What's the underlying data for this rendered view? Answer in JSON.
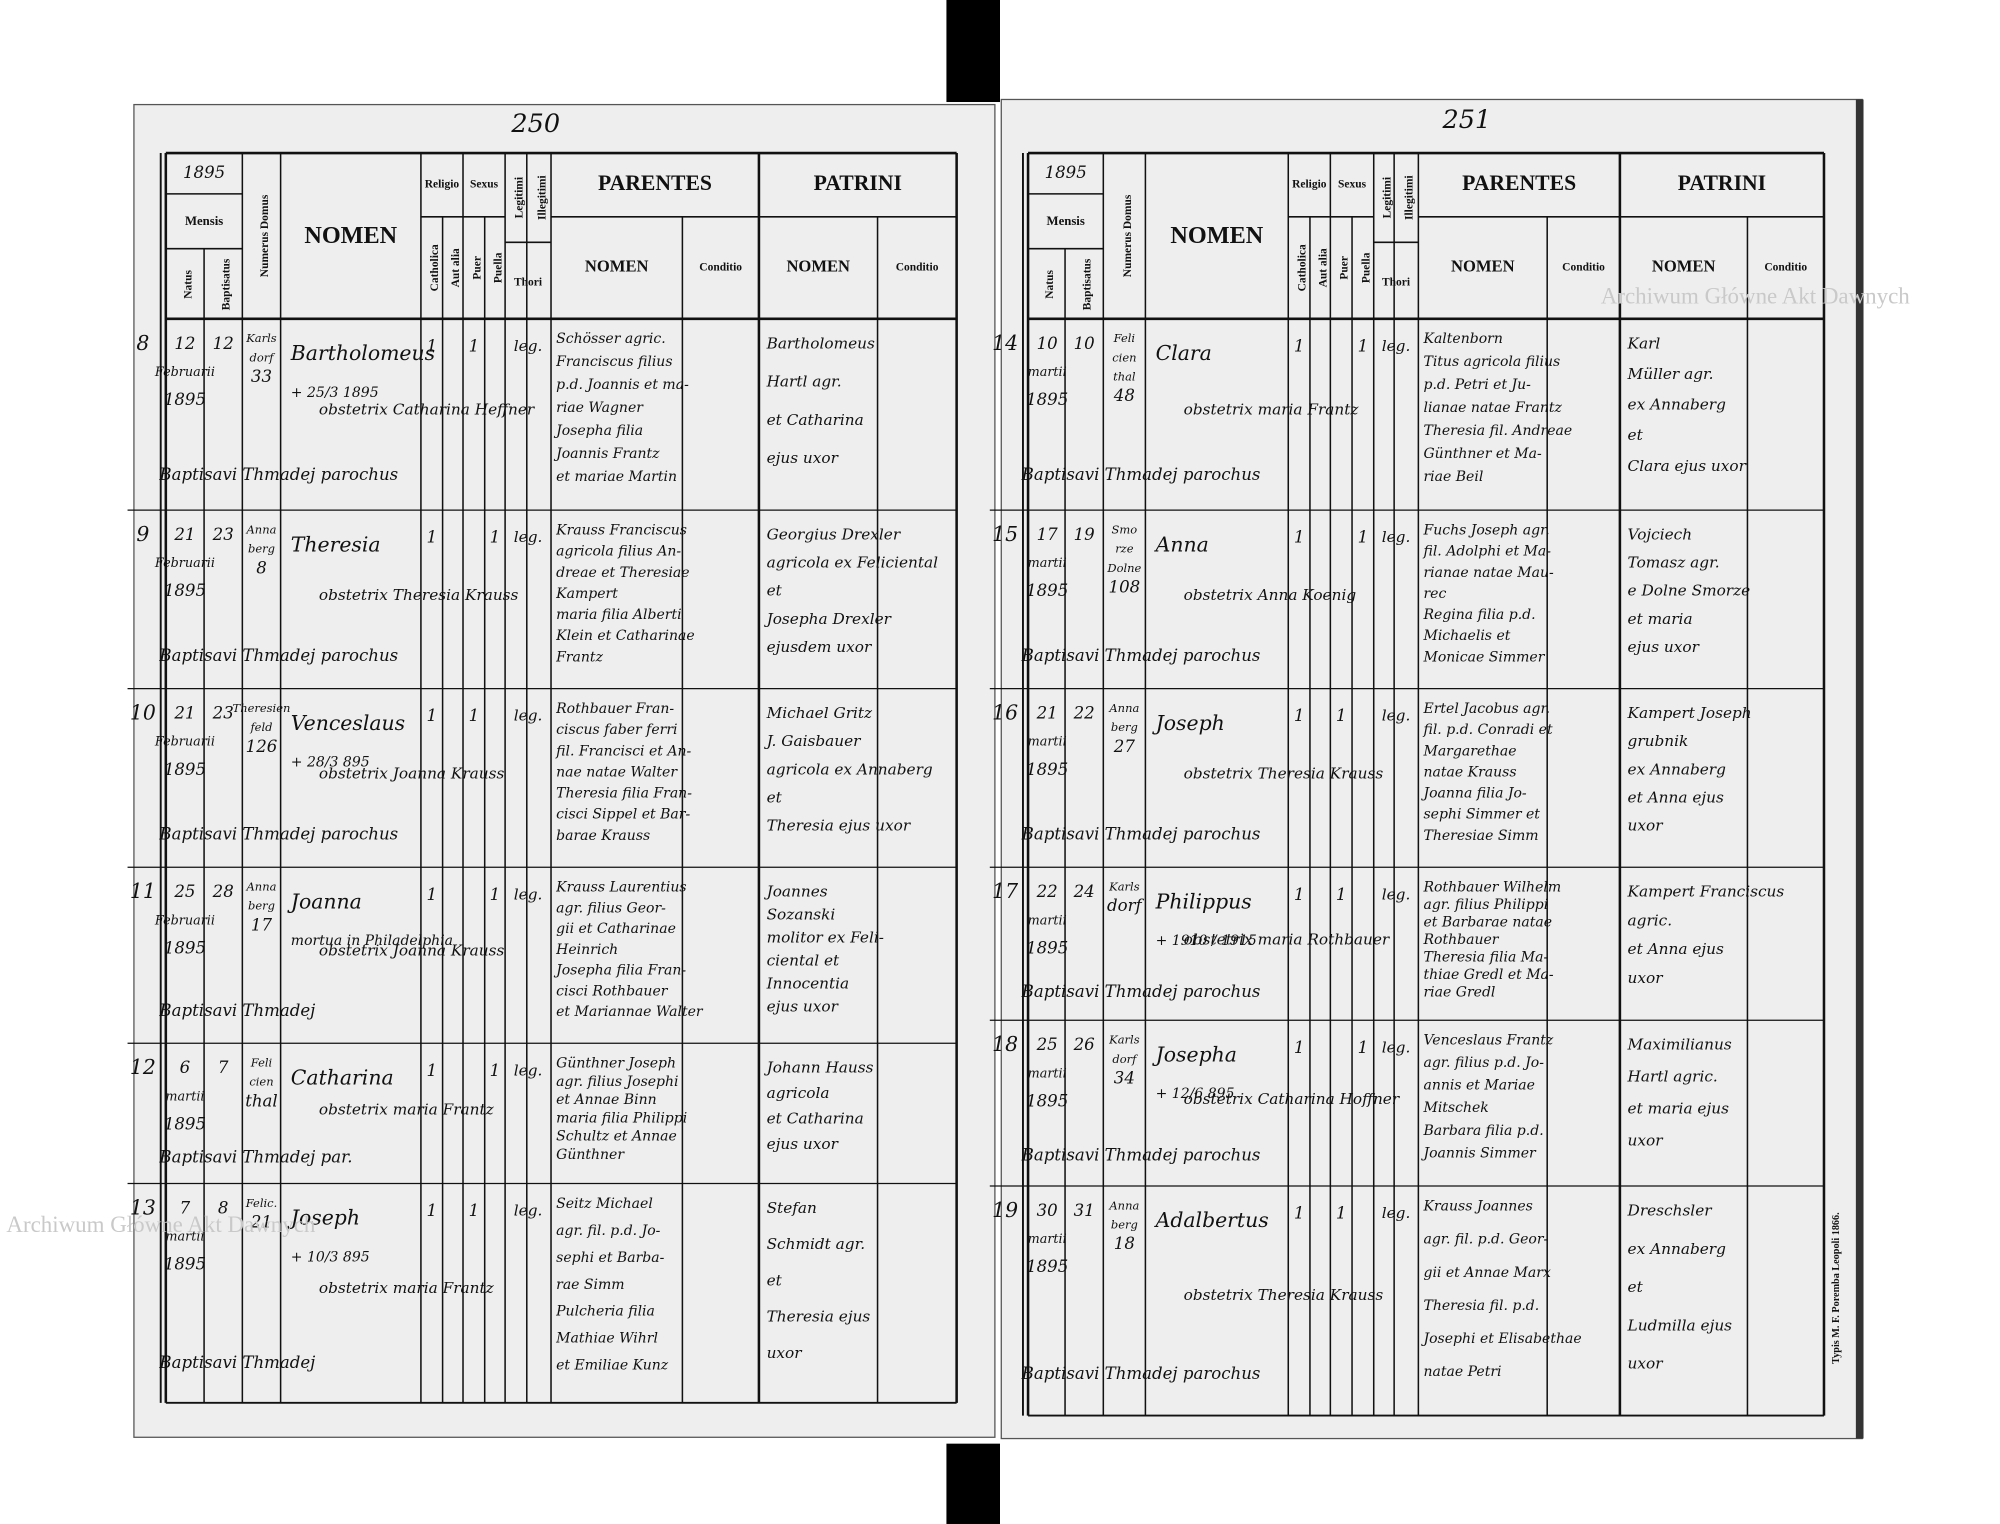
{
  "watermark": "Archiwum Główne Akt Dawnych",
  "header": {
    "mensis": "Mensis",
    "natus": "Natus",
    "baptisatus": "Baptisatus",
    "numerus_domus": "Numerus Domus",
    "nomen": "NOMEN",
    "religio": "Religio",
    "catholica": "Catholica",
    "aut_alia": "Aut alia",
    "sexus": "Sexus",
    "puer": "Puer",
    "puella": "Puella",
    "legitimi": "Legitimi",
    "illegitimi": "Illegitimi",
    "thori": "Thori",
    "parentes": "PARENTES",
    "patrini": "PATRINI",
    "parentes_nomen": "NOMEN",
    "parentes_conditio": "Conditio",
    "patrini_nomen": "NOMEN",
    "patrini_conditio": "Conditio"
  },
  "footer_print": "Typis M. F. Poremba Leopoli 1866.",
  "pages": [
    {
      "page_number": "250",
      "year": "1895",
      "rows": [
        {
          "no": "8",
          "natus": [
            "12",
            "Februarii",
            "1895"
          ],
          "baptisatus": "12",
          "domus": [
            "Karls",
            "dorf",
            "33"
          ],
          "nomen": "Bartholomeus",
          "note": "+ 25/3 1895",
          "catholica": "1",
          "puer": "1",
          "thori": "leg.",
          "obstetrix": "obstetrix Catharina Heffner",
          "baptisavit": "Baptisavi Thmadej parochus",
          "parentes": [
            "Schösser agric.",
            "Franciscus filius",
            "p.d. Joannis et ma-",
            "riae Wagner",
            "Josepha filia",
            "Joannis Frantz",
            "et mariae Martin"
          ],
          "patrini": [
            "Bartholomeus",
            "Hartl agr.",
            "et Catharina",
            "ejus uxor"
          ]
        },
        {
          "no": "9",
          "natus": [
            "21",
            "Februarii",
            "1895"
          ],
          "baptisatus": "23",
          "domus": [
            "Anna",
            "berg",
            "8"
          ],
          "nomen": "Theresia",
          "catholica": "1",
          "puella": "1",
          "thori": "leg.",
          "obstetrix": "obstetrix Theresia Krauss",
          "baptisavit": "Baptisavi Thmadej parochus",
          "parentes": [
            "Krauss Franciscus",
            "agricola filius An-",
            "dreae et Theresiae",
            "Kampert",
            "maria filia Alberti",
            "Klein et Catharinae",
            "Frantz"
          ],
          "patrini": [
            "Georgius Drexler",
            "agricola ex Feliciental",
            "et",
            "Josepha Drexler",
            "ejusdem uxor"
          ]
        },
        {
          "no": "10",
          "natus": [
            "21",
            "Februarii",
            "1895"
          ],
          "baptisatus": "23",
          "domus": [
            "Theresien",
            "feld",
            "126"
          ],
          "nomen": "Venceslaus",
          "note": "+ 28/3 895",
          "catholica": "1",
          "puer": "1",
          "thori": "leg.",
          "obstetrix": "obstetrix Joanna Krauss",
          "baptisavit": "Baptisavi Thmadej parochus",
          "parentes": [
            "Rothbauer Fran-",
            "ciscus faber ferri",
            "fil. Francisci et An-",
            "nae natae Walter",
            "Theresia filia Fran-",
            "cisci Sippel et Bar-",
            "barae Krauss"
          ],
          "patrini": [
            "Michael Gritz",
            "J. Gaisbauer",
            "agricola ex Annaberg",
            "et",
            "Theresia ejus uxor"
          ]
        },
        {
          "no": "11",
          "natus": [
            "25",
            "Februarii",
            "1895"
          ],
          "baptisatus": "28",
          "domus": [
            "Anna",
            "berg",
            "17"
          ],
          "nomen": "Joanna",
          "note": "mortua in Philadelphia",
          "catholica": "1",
          "puella": "1",
          "thori": "leg.",
          "obstetrix": "obstetrix Joanna Krauss",
          "baptisavit": "Baptisavi Thmadej",
          "parentes": [
            "Krauss Laurentius",
            "agr. filius Geor-",
            "gii et Catharinae",
            "Heinrich",
            "Josepha filia Fran-",
            "cisci Rothbauer",
            "et Mariannae Walter"
          ],
          "patrini": [
            "Joannes",
            "Sozanski",
            "molitor ex Feli-",
            "ciental et",
            "Innocentia",
            "ejus uxor"
          ]
        },
        {
          "no": "12",
          "natus": [
            "6",
            "martii",
            "1895"
          ],
          "baptisatus": "7",
          "domus": [
            "Feli",
            "cien",
            "thal"
          ],
          "nomen": "Catharina",
          "catholica": "1",
          "puella": "1",
          "thori": "leg.",
          "obstetrix": "obstetrix maria Frantz",
          "baptisavit": "Baptisavi Thmadej par.",
          "parentes": [
            "Günthner Joseph",
            "agr. filius Josephi",
            "et Annae Binn",
            "maria filia Philippi",
            "Schultz et Annae",
            "Günthner"
          ],
          "patrini": [
            "Johann Hauss",
            "agricola",
            "et Catharina",
            "ejus uxor"
          ]
        },
        {
          "no": "13",
          "natus": [
            "7",
            "martii",
            "1895"
          ],
          "baptisatus": "8",
          "domus": [
            "Felic.",
            "21"
          ],
          "nomen": "Joseph",
          "note": "+ 10/3 895",
          "catholica": "1",
          "puer": "1",
          "thori": "leg.",
          "obstetrix": "obstetrix maria Frantz",
          "baptisavit": "Baptisavi Thmadej",
          "parentes": [
            "Seitz Michael",
            "agr. fil. p.d. Jo-",
            "sephi et Barba-",
            "rae Simm",
            "Pulcheria filia",
            "Mathiae Wihrl",
            "et Emiliae Kunz"
          ],
          "patrini": [
            "Stefan",
            "Schmidt agr.",
            "et",
            "Theresia ejus",
            "uxor"
          ]
        }
      ]
    },
    {
      "page_number": "251",
      "year": "1895",
      "rows": [
        {
          "no": "14",
          "natus": [
            "10",
            "martii",
            "1895"
          ],
          "baptisatus": "10",
          "domus": [
            "Feli",
            "cien",
            "thal",
            "48"
          ],
          "nomen": "Clara",
          "catholica": "1",
          "puella": "1",
          "thori": "leg.",
          "obstetrix": "obstetrix maria Frantz",
          "baptisavit": "Baptisavi Thmadej parochus",
          "parentes": [
            "Kaltenborn",
            "Titus agricola filius",
            "p.d. Petri et Ju-",
            "lianae natae Frantz",
            "Theresia fil. Andreae",
            "Günthner et Ma-",
            "riae Beil"
          ],
          "patrini": [
            "Karl",
            "Müller agr.",
            "ex Annaberg",
            "et",
            "Clara ejus uxor"
          ]
        },
        {
          "no": "15",
          "natus": [
            "17",
            "martii",
            "1895"
          ],
          "baptisatus": "19",
          "domus": [
            "Smo",
            "rze",
            "Dolne",
            "108"
          ],
          "nomen": "Anna",
          "catholica": "1",
          "puella": "1",
          "thori": "leg.",
          "obstetrix": "obstetrix Anna Koenig",
          "baptisavit": "Baptisavi Thmadej parochus",
          "parentes": [
            "Fuchs Joseph agr.",
            "fil. Adolphi et Ma-",
            "rianae natae Mau-",
            "rec",
            "Regina filia p.d.",
            "Michaelis et",
            "Monicae Simmer"
          ],
          "patrini": [
            "Vojciech",
            "Tomasz agr.",
            "e Dolne Smorze",
            "et maria",
            "ejus uxor"
          ]
        },
        {
          "no": "16",
          "natus": [
            "21",
            "martii",
            "1895"
          ],
          "baptisatus": "22",
          "domus": [
            "Anna",
            "berg",
            "27"
          ],
          "nomen": "Joseph",
          "catholica": "1",
          "puer": "1",
          "thori": "leg.",
          "obstetrix": "obstetrix Theresia Krauss",
          "baptisavit": "Baptisavi Thmadej parochus",
          "parentes": [
            "Ertel Jacobus agr.",
            "fil. p.d. Conradi et",
            "Margarethae",
            "natae Krauss",
            "Joanna filia Jo-",
            "sephi Simmer et",
            "Theresiae Simm"
          ],
          "patrini": [
            "Kampert Joseph",
            "grubnik",
            "ex Annaberg",
            "et Anna ejus",
            "uxor"
          ]
        },
        {
          "no": "17",
          "natus": [
            "22",
            "martii",
            "1895"
          ],
          "baptisatus": "24",
          "domus": [
            "Karls",
            "dorf"
          ],
          "nomen": "Philippus",
          "note": "+ 1910 / 1915",
          "catholica": "1",
          "puer": "1",
          "thori": "leg.",
          "obstetrix": "obstetrix maria Rothbauer",
          "baptisavit": "Baptisavi Thmadej parochus",
          "parentes": [
            "Rothbauer Wilhelm",
            "agr. filius Philippi",
            "et Barbarae natae",
            "Rothbauer",
            "Theresia filia Ma-",
            "thiae Gredl et Ma-",
            "riae Gredl"
          ],
          "patrini": [
            "Kampert Franciscus",
            "agric.",
            "et Anna ejus",
            "uxor"
          ]
        },
        {
          "no": "18",
          "natus": [
            "25",
            "martii",
            "1895"
          ],
          "baptisatus": "26",
          "domus": [
            "Karls",
            "dorf",
            "34"
          ],
          "nomen": "Josepha",
          "note": "+ 12/6 895",
          "catholica": "1",
          "puella": "1",
          "thori": "leg.",
          "obstetrix": "obstetrix Catharina Hoffner",
          "baptisavit": "Baptisavi Thmadej parochus",
          "parentes": [
            "Venceslaus Frantz",
            "agr. filius p.d. Jo-",
            "annis et Mariae",
            "Mitschek",
            "Barbara filia p.d.",
            "Joannis Simmer"
          ],
          "patrini": [
            "Maximilianus",
            "Hartl agric.",
            "et maria ejus",
            "uxor"
          ]
        },
        {
          "no": "19",
          "natus": [
            "30",
            "martii",
            "1895"
          ],
          "baptisatus": "31",
          "domus": [
            "Anna",
            "berg",
            "18"
          ],
          "nomen": "Adalbertus",
          "catholica": "1",
          "puer": "1",
          "thori": "leg.",
          "obstetrix": "obstetrix Theresia Krauss",
          "baptisavit": "Baptisavi Thmadej parochus",
          "parentes": [
            "Krauss Joannes",
            "agr. fil. p.d. Geor-",
            "gii et Annae Marx",
            "Theresia fil. p.d.",
            "Josephi et Elisabethae",
            "natae Petri"
          ],
          "patrini": [
            "Dreschsler",
            "ex Annaberg",
            "et",
            "Ludmilla ejus",
            "uxor"
          ]
        }
      ]
    }
  ]
}
